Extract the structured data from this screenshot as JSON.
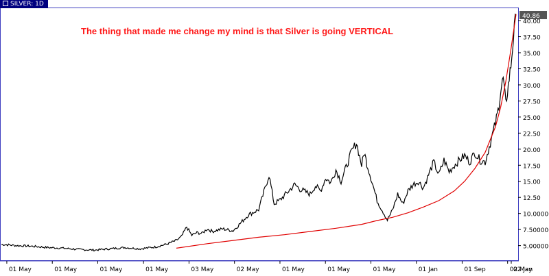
{
  "window": {
    "title": "SILVER: 1D"
  },
  "annotation": {
    "text": "The thing that made me change my mind is that Silver is going VERTICAL",
    "color": "#ff1a1a"
  },
  "price_badge": {
    "value": "40.86"
  },
  "colors": {
    "price_line": "#000000",
    "trend_curve": "#e00000",
    "axis_frame": "#3b3bbf",
    "title_bar": "#000080"
  },
  "chart_data": {
    "type": "line",
    "ylim": [
      4.0,
      41.5
    ],
    "y_ticks": [
      {
        "value": 40.0,
        "label": "40.00"
      },
      {
        "value": 37.5,
        "label": "37.50"
      },
      {
        "value": 35.0,
        "label": "35.00"
      },
      {
        "value": 32.5,
        "label": "32.50"
      },
      {
        "value": 30.0,
        "label": "30.00"
      },
      {
        "value": 27.5,
        "label": "27.50"
      },
      {
        "value": 25.0,
        "label": "25.00"
      },
      {
        "value": 22.5,
        "label": "22.50"
      },
      {
        "value": 20.0,
        "label": "20.00"
      },
      {
        "value": 17.5,
        "label": "17.50"
      },
      {
        "value": 15.0,
        "label": "15.00"
      },
      {
        "value": 12.5,
        "label": "12.50"
      },
      {
        "value": 10.0,
        "label": "10.00000"
      },
      {
        "value": 7.5,
        "label": "7.500000"
      },
      {
        "value": 5.0,
        "label": "5.000000"
      }
    ],
    "x_tick_labels": [
      "01 May",
      "01 May",
      "01 May",
      "01 May",
      "03 May",
      "02 May",
      "01 May",
      "01 May",
      "01 May",
      "01 Jan",
      "01 Sep",
      "02 May",
      "02 Jan"
    ],
    "x_index_range": [
      0,
      100
    ],
    "x_tick_positions": [
      2,
      18.7,
      35.4,
      52.2,
      68.9,
      85.6,
      102.3,
      119,
      135.7,
      152.4,
      169.2,
      185.9,
      196.8
    ],
    "x_tick_scale_max": 200,
    "series": [
      {
        "kind": "price",
        "x": [
          0,
          3,
          6,
          9,
          12,
          15,
          18,
          21,
          24,
          27,
          28,
          30,
          32,
          34,
          35,
          36,
          37,
          38,
          39,
          40,
          41,
          43,
          45,
          46,
          48,
          50,
          52,
          53,
          54,
          55,
          57,
          58,
          60,
          61,
          62,
          63,
          64,
          65,
          66,
          67,
          68,
          69,
          70,
          70.5,
          71,
          72,
          73,
          74,
          75,
          76,
          77,
          78,
          79,
          80,
          81,
          82,
          83,
          84,
          85,
          86,
          87,
          88,
          89,
          90,
          91,
          92,
          93,
          94,
          95,
          96,
          96.5,
          97,
          97.5,
          98,
          98.5,
          99,
          99.5,
          100
        ],
        "y": [
          5.2,
          5.0,
          4.9,
          4.7,
          4.6,
          4.4,
          4.3,
          4.5,
          4.7,
          4.5,
          4.6,
          4.8,
          5.2,
          5.8,
          6.4,
          7.9,
          6.6,
          7.0,
          6.9,
          7.6,
          7.2,
          7.6,
          7.3,
          8.1,
          9.8,
          10.6,
          16.0,
          11.5,
          12.0,
          12.8,
          14.5,
          13.8,
          13.0,
          14.3,
          13.5,
          15.5,
          14.8,
          16.8,
          15.0,
          17.2,
          19.5,
          21.0,
          17.5,
          19.5,
          17.8,
          15.0,
          12.0,
          10.5,
          9.0,
          10.5,
          13.0,
          11.5,
          13.5,
          14.5,
          15.0,
          14.0,
          16.0,
          18.0,
          16.0,
          18.3,
          16.5,
          17.5,
          18.3,
          19.0,
          18.0,
          19.5,
          18.3,
          18.0,
          21.0,
          24.0,
          26.0,
          29.0,
          31.0,
          27.0,
          30.0,
          33.0,
          37.5,
          40.86
        ]
      },
      {
        "kind": "trend",
        "x": [
          34,
          40,
          45,
          50,
          55,
          60,
          65,
          70,
          73,
          76,
          79,
          82,
          85,
          88,
          90,
          92,
          94,
          96,
          97,
          98,
          99,
          100
        ],
        "y": [
          4.6,
          5.3,
          5.8,
          6.3,
          6.7,
          7.2,
          7.7,
          8.3,
          8.9,
          9.4,
          10.1,
          11.0,
          12.0,
          13.5,
          15.0,
          17.0,
          19.5,
          23.5,
          26.5,
          30.5,
          35.5,
          41.0
        ]
      }
    ]
  }
}
